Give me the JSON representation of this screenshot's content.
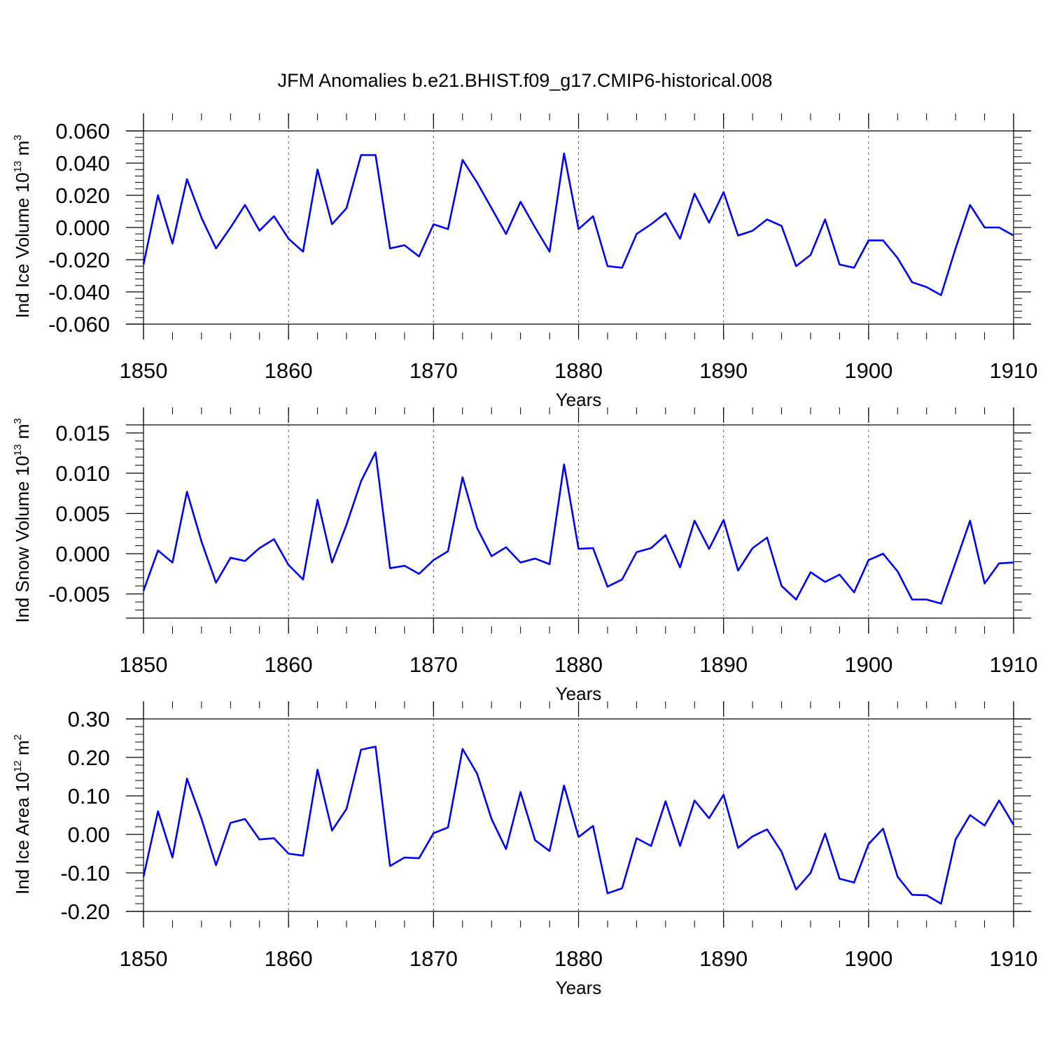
{
  "chart_data": {
    "title": "JFM Anomalies b.e21.BHIST.f09_g17.CMIP6-historical.008",
    "panels": [
      {
        "type": "line",
        "xlabel": "Years",
        "ylabel_prefix": "Ind Ice Volume 10",
        "ylabel_exp": "13",
        "ylabel_unit": " m",
        "ylabel_unit_exp": "3",
        "xlim": [
          1850,
          1910
        ],
        "ylim": [
          -0.06,
          0.06
        ],
        "xticks": [
          "1850",
          "1860",
          "1870",
          "1880",
          "1890",
          "1900",
          "1910"
        ],
        "yticks": [
          {
            "value": 0.06,
            "label": "0.060"
          },
          {
            "value": 0.04,
            "label": "0.040"
          },
          {
            "value": 0.02,
            "label": "0.020"
          },
          {
            "value": 0.0,
            "label": "0.000"
          },
          {
            "value": -0.02,
            "label": "-0.020"
          },
          {
            "value": -0.04,
            "label": "-0.040"
          },
          {
            "value": -0.06,
            "label": "-0.060"
          }
        ],
        "grid_x": true,
        "series": [
          {
            "name": "Ind Ice Volume",
            "color": "#0000ff",
            "x_start": 1850,
            "values": [
              -0.023,
              0.02,
              -0.01,
              0.03,
              0.006,
              -0.013,
              0.0,
              0.014,
              -0.002,
              0.007,
              -0.007,
              -0.015,
              0.036,
              0.002,
              0.012,
              0.045,
              0.045,
              -0.013,
              -0.011,
              -0.018,
              0.002,
              -0.001,
              0.042,
              0.028,
              0.012,
              -0.004,
              0.016,
              0.0,
              -0.015,
              0.046,
              -0.001,
              0.007,
              -0.024,
              -0.025,
              -0.004,
              0.002,
              0.009,
              -0.007,
              0.021,
              0.003,
              0.022,
              -0.005,
              -0.002,
              0.005,
              0.001,
              -0.024,
              -0.017,
              0.005,
              -0.023,
              -0.025,
              -0.008,
              -0.008,
              -0.019,
              -0.034,
              -0.037,
              -0.042,
              -0.013,
              0.014,
              0.0,
              0.0,
              -0.005
            ]
          }
        ]
      },
      {
        "type": "line",
        "xlabel": "Years",
        "ylabel_prefix": "Ind Snow Volume 10",
        "ylabel_exp": "13",
        "ylabel_unit": " m",
        "ylabel_unit_exp": "3",
        "xlim": [
          1850,
          1910
        ],
        "ylim": [
          -0.008,
          0.016
        ],
        "xticks": [
          "1850",
          "1860",
          "1870",
          "1880",
          "1890",
          "1900",
          "1910"
        ],
        "yticks": [
          {
            "value": 0.015,
            "label": "0.015"
          },
          {
            "value": 0.01,
            "label": "0.010"
          },
          {
            "value": 0.005,
            "label": "0.005"
          },
          {
            "value": 0.0,
            "label": "0.000"
          },
          {
            "value": -0.005,
            "label": "-0.005"
          }
        ],
        "grid_x": true,
        "series": [
          {
            "name": "Ind Snow Volume",
            "color": "#0000ff",
            "x_start": 1850,
            "values": [
              -0.0046,
              0.0004,
              -0.0011,
              0.0077,
              0.0015,
              -0.0036,
              -0.0005,
              -0.0009,
              0.0007,
              0.0018,
              -0.0014,
              -0.0032,
              0.0067,
              -0.0011,
              0.0036,
              0.009,
              0.0126,
              -0.0018,
              -0.0015,
              -0.0025,
              -0.0008,
              0.0003,
              0.0095,
              0.0032,
              -0.0003,
              0.0008,
              -0.0011,
              -0.0006,
              -0.0013,
              0.0111,
              0.0006,
              0.0007,
              -0.0041,
              -0.0032,
              0.0002,
              0.0007,
              0.0023,
              -0.0017,
              0.0041,
              0.0006,
              0.0042,
              -0.0021,
              0.0007,
              0.002,
              -0.004,
              -0.0057,
              -0.0023,
              -0.0035,
              -0.0026,
              -0.0048,
              -0.0008,
              0.0,
              -0.0022,
              -0.0057,
              -0.0057,
              -0.0062,
              -0.0011,
              0.0041,
              -0.0037,
              -0.0012,
              -0.0011
            ]
          }
        ]
      },
      {
        "type": "line",
        "xlabel": "Years",
        "ylabel_prefix": "Ind Ice Area 10",
        "ylabel_exp": "12",
        "ylabel_unit": " m",
        "ylabel_unit_exp": "2",
        "xlim": [
          1850,
          1910
        ],
        "ylim": [
          -0.2,
          0.3
        ],
        "xticks": [
          "1850",
          "1860",
          "1870",
          "1880",
          "1890",
          "1900",
          "1910"
        ],
        "yticks": [
          {
            "value": 0.3,
            "label": "0.30"
          },
          {
            "value": 0.2,
            "label": "0.20"
          },
          {
            "value": 0.1,
            "label": "0.10"
          },
          {
            "value": 0.0,
            "label": "0.00"
          },
          {
            "value": -0.1,
            "label": "-0.10"
          },
          {
            "value": -0.2,
            "label": "-0.20"
          }
        ],
        "grid_x": true,
        "series": [
          {
            "name": "Ind Ice Area",
            "color": "#0000ff",
            "x_start": 1850,
            "values": [
              -0.11,
              0.06,
              -0.06,
              0.145,
              0.04,
              -0.08,
              0.03,
              0.04,
              -0.013,
              -0.01,
              -0.05,
              -0.055,
              0.168,
              0.01,
              0.066,
              0.22,
              0.228,
              -0.082,
              -0.06,
              -0.062,
              0.003,
              0.018,
              0.222,
              0.158,
              0.04,
              -0.038,
              0.11,
              -0.015,
              -0.043,
              0.127,
              -0.007,
              0.022,
              -0.153,
              -0.14,
              -0.01,
              -0.03,
              0.086,
              -0.03,
              0.088,
              0.042,
              0.103,
              -0.035,
              -0.005,
              0.013,
              -0.045,
              -0.143,
              -0.1,
              0.002,
              -0.115,
              -0.125,
              -0.025,
              0.015,
              -0.11,
              -0.157,
              -0.158,
              -0.18,
              -0.013,
              0.05,
              0.023,
              0.088,
              0.025
            ]
          }
        ]
      }
    ]
  }
}
